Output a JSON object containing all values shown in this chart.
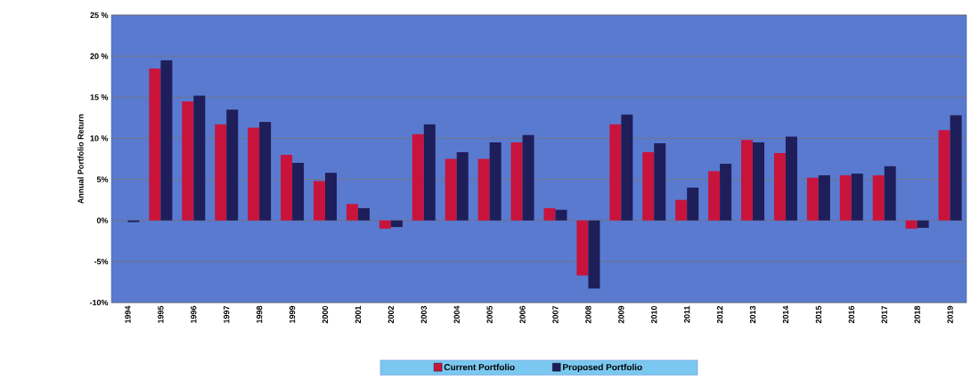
{
  "chart_data": {
    "type": "bar",
    "ylabel": "Annual Portfolio Return",
    "categories": [
      "1994",
      "1995",
      "1996",
      "1997",
      "1998",
      "1999",
      "2000",
      "2001",
      "2002",
      "2003",
      "2004",
      "2005",
      "2006",
      "2007",
      "2008",
      "2009",
      "2010",
      "2011",
      "2012",
      "2013",
      "2014",
      "2015",
      "2016",
      "2017",
      "2018",
      "2019"
    ],
    "series": [
      {
        "name": "Current Portfolio",
        "color": "#c8143c",
        "values": [
          0,
          18.5,
          14.5,
          11.7,
          11.3,
          8,
          4.8,
          2,
          -1,
          10.5,
          7.5,
          7.5,
          9.5,
          1.5,
          -6.7,
          11.7,
          8.3,
          2.5,
          6,
          9.8,
          8.2,
          5.2,
          5.5,
          5.5,
          -1,
          11
        ]
      },
      {
        "name": "Proposed Portfolio",
        "color": "#1e1e5a",
        "values": [
          -0.2,
          19.5,
          15.2,
          13.5,
          12,
          7,
          5.8,
          1.5,
          -0.8,
          11.7,
          8.3,
          9.5,
          10.4,
          1.3,
          -8.3,
          12.9,
          9.4,
          4,
          6.9,
          9.5,
          10.2,
          5.5,
          5.7,
          6.6,
          -0.9,
          12.8
        ]
      }
    ],
    "ylim": [
      -10,
      25
    ],
    "yticks": [
      {
        "value": -10,
        "label": "-10%"
      },
      {
        "value": -5,
        "label": "-5%"
      },
      {
        "value": 0,
        "label": "0%"
      },
      {
        "value": 5,
        "label": "5%"
      },
      {
        "value": 10,
        "label": "10 %"
      },
      {
        "value": 15,
        "label": "15 %"
      },
      {
        "value": 20,
        "label": "20 %"
      },
      {
        "value": 25,
        "label": "25 %"
      }
    ],
    "grid": "y",
    "legend": "bottom"
  }
}
